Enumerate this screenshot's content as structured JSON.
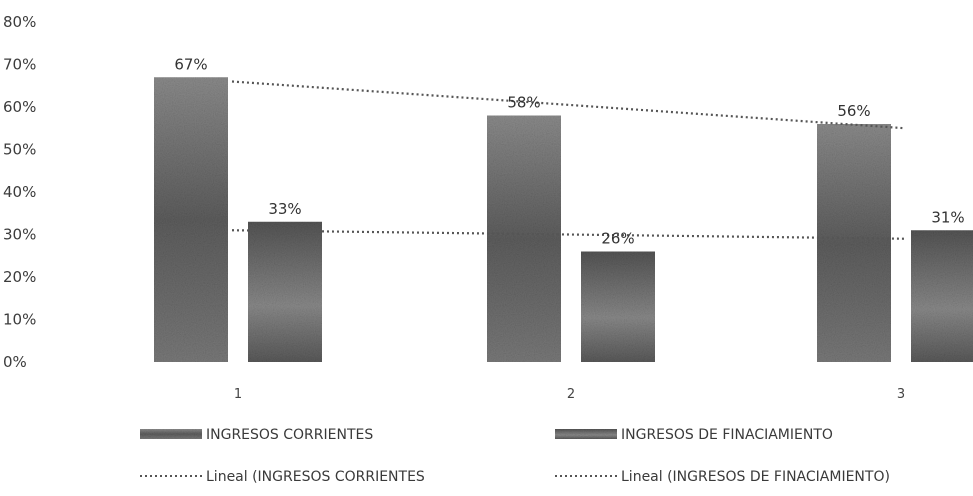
{
  "chart_data": {
    "type": "bar",
    "categories": [
      "1",
      "2",
      "3"
    ],
    "series": [
      {
        "name": "INGRESOS CORRIENTES",
        "values": [
          67,
          58,
          56
        ],
        "labels": [
          "67%",
          "58%",
          "56%"
        ],
        "color": "#7a7a7a"
      },
      {
        "name": "INGRESOS DE FINACIAMIENTO",
        "values": [
          33,
          26,
          31
        ],
        "labels": [
          "33%",
          "26%",
          "31%"
        ],
        "color": "#6a6a6a"
      }
    ],
    "trendlines": [
      {
        "name": "Lineal (INGRESOS CORRIENTES",
        "series": "INGRESOS CORRIENTES",
        "type": "linear",
        "start": 66,
        "end": 55
      },
      {
        "name": "Lineal (INGRESOS DE FINACIAMIENTO)",
        "series": "INGRESOS DE FINACIAMIENTO",
        "type": "linear",
        "start": 31,
        "end": 29
      }
    ],
    "yticks": [
      "0%",
      "10%",
      "20%",
      "30%",
      "40%",
      "50%",
      "60%",
      "70%",
      "80%"
    ],
    "ylim": [
      0,
      80
    ],
    "grid": false,
    "legend_position": "bottom"
  }
}
